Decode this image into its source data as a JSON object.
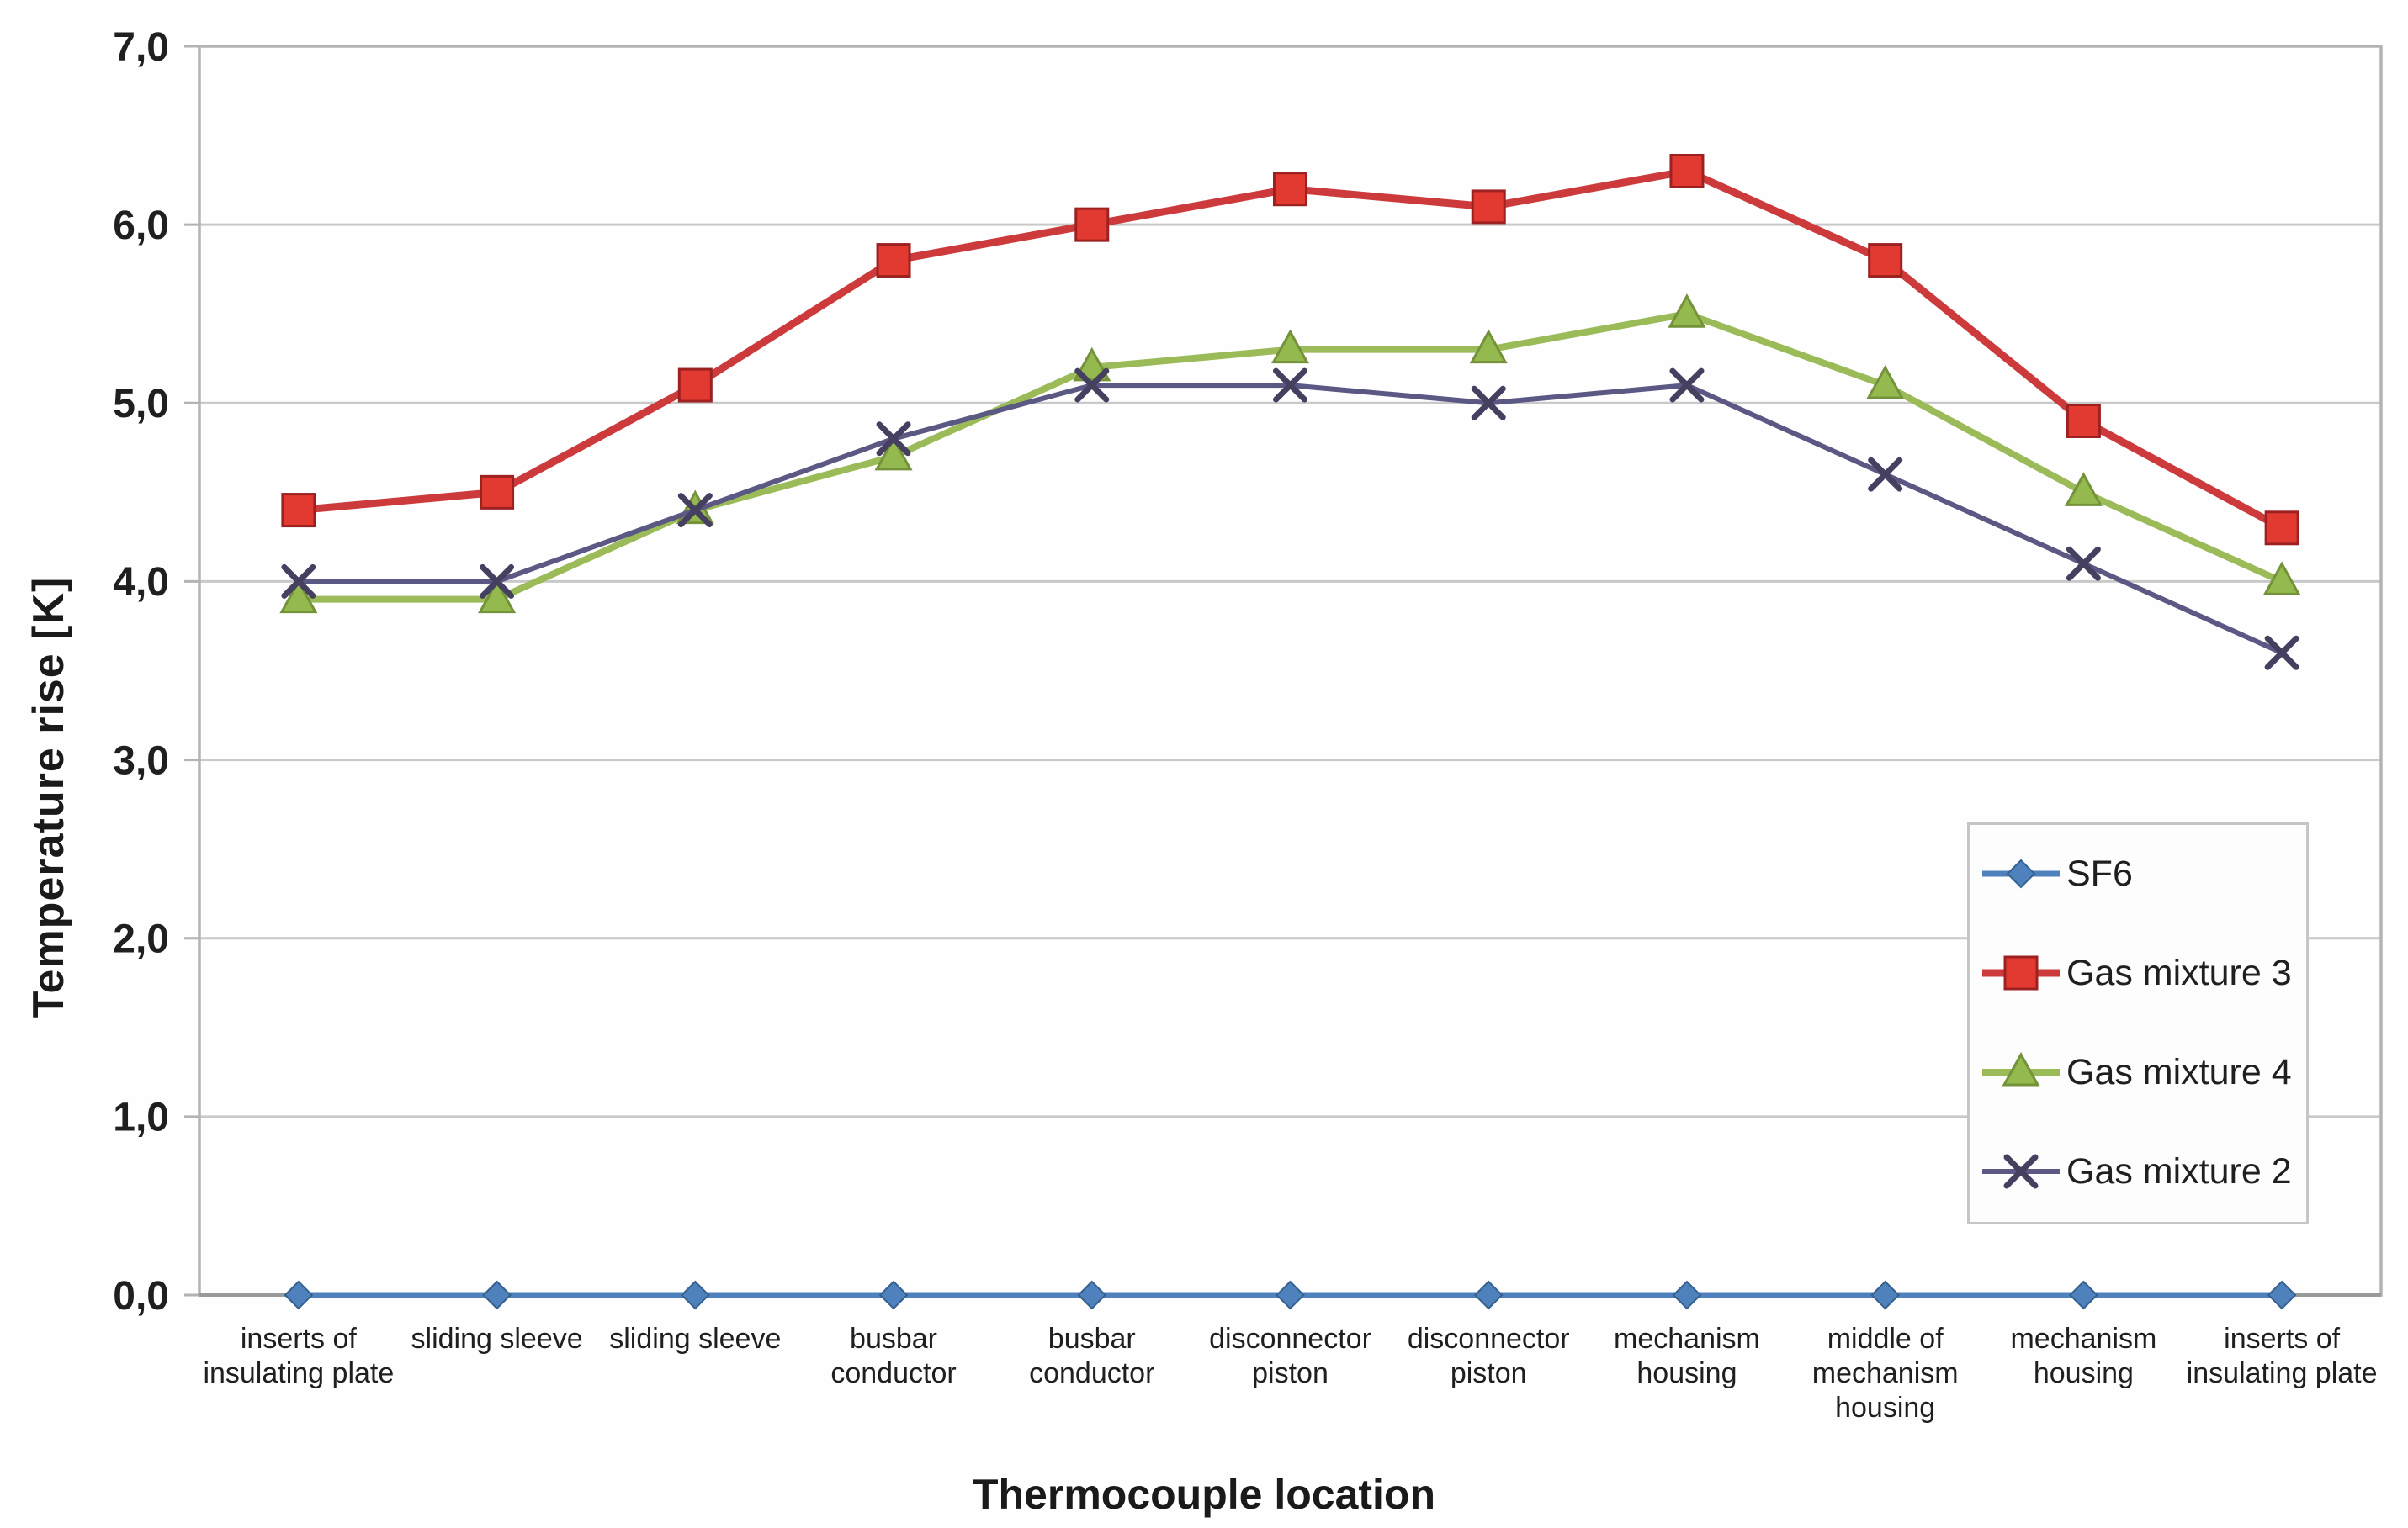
{
  "chart_data": {
    "type": "line",
    "title": "",
    "xlabel": "Thermocouple location",
    "ylabel": "Temperature rise [K]",
    "ylim": [
      0,
      7
    ],
    "grid": "horizontal",
    "decimal_style": "comma",
    "yticks": [
      0,
      1,
      2,
      3,
      4,
      5,
      6,
      7
    ],
    "ytick_labels": [
      "0,0",
      "1,0",
      "2,0",
      "3,0",
      "4,0",
      "5,0",
      "6,0",
      "7,0"
    ],
    "categories": [
      "inserts of insulating plate",
      "sliding sleeve",
      "sliding sleeve",
      "busbar conductor",
      "busbar conductor",
      "disconnector piston",
      "disconnector piston",
      "mechanism housing",
      "middle of mechanism housing",
      "mechanism housing",
      "inserts of insulating plate"
    ],
    "series": [
      {
        "name": "SF6",
        "marker": "diamond",
        "color": "#4f81bd",
        "edge": "#35618f",
        "values": [
          0.0,
          0.0,
          0.0,
          0.0,
          0.0,
          0.0,
          0.0,
          0.0,
          0.0,
          0.0,
          0.0
        ]
      },
      {
        "name": "Gas mixture 3",
        "marker": "square",
        "color": "#cd3a3c",
        "edge": "#9e2121",
        "fill": "#e23a30",
        "values": [
          4.4,
          4.5,
          5.1,
          5.8,
          6.0,
          6.2,
          6.1,
          6.3,
          5.8,
          4.9,
          4.3
        ]
      },
      {
        "name": "Gas mixture 4",
        "marker": "triangle",
        "color": "#9bbb59",
        "edge": "#74923a",
        "fill": "#94b94e",
        "values": [
          3.9,
          3.9,
          4.4,
          4.7,
          5.2,
          5.3,
          5.3,
          5.5,
          5.1,
          4.5,
          4.0
        ]
      },
      {
        "name": "Gas mixture 2",
        "marker": "x",
        "color": "#5b5884",
        "edge": "#454060",
        "values": [
          4.0,
          4.0,
          4.4,
          4.8,
          5.1,
          5.1,
          5.0,
          5.1,
          4.6,
          4.1,
          3.6
        ]
      }
    ],
    "legend_position": "inside-right",
    "legend_entries": [
      "SF6",
      "Gas mixture 3",
      "Gas mixture 4",
      "Gas mixture 2"
    ],
    "colors": {
      "gridline": "#c9c9c9",
      "plot_border": "#b3b3b3",
      "axis_line": "#9a9a9a",
      "text": "#1f1f1f"
    }
  }
}
